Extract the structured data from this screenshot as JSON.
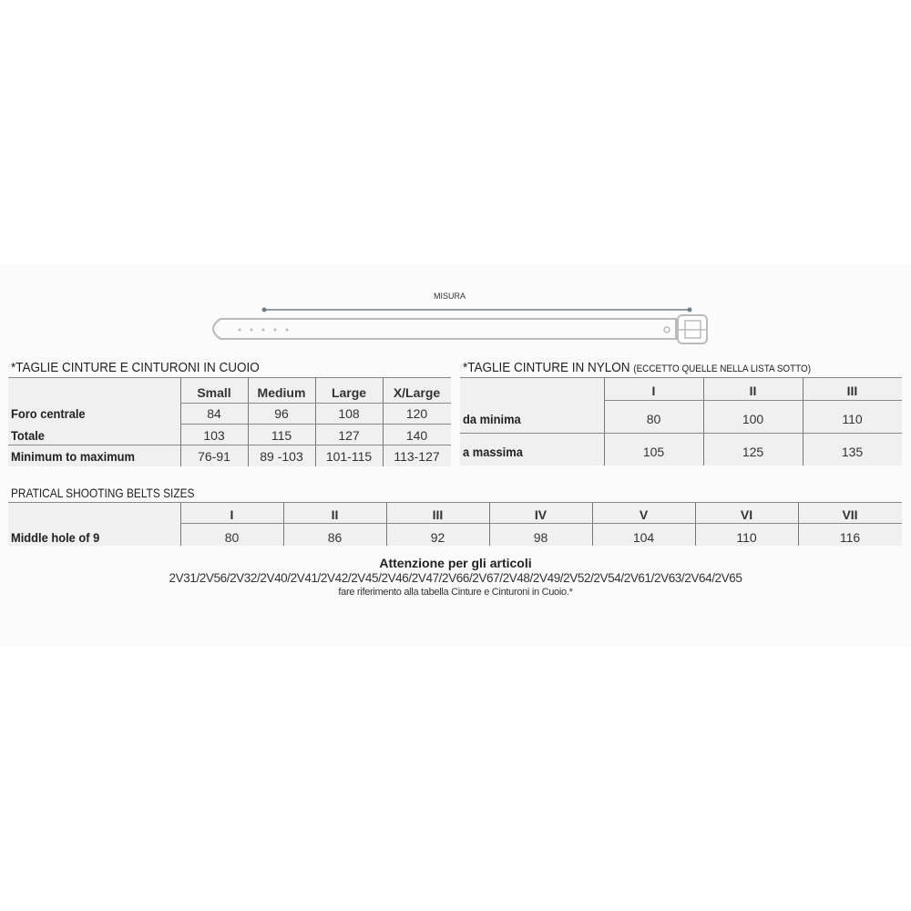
{
  "belt_diagram": {
    "measure_label": "MISURA"
  },
  "leather": {
    "title": "*TAGLIE CINTURE E CINTURONI IN CUOIO",
    "columns": [
      "Small",
      "Medium",
      "Large",
      "X/Large"
    ],
    "rows": [
      {
        "label": "Foro centrale",
        "values": [
          "84",
          "96",
          "108",
          "120"
        ]
      },
      {
        "label": "Totale",
        "values": [
          "103",
          "115",
          "127",
          "140"
        ]
      },
      {
        "label": "Minimum to maximum",
        "values": [
          "76-91",
          "89 -103",
          "101-115",
          "113-127"
        ]
      }
    ]
  },
  "nylon": {
    "title": "*TAGLIE CINTURE IN NYLON",
    "subtitle": "(ECCETTO QUELLE NELLA LISTA SOTTO)",
    "columns": [
      "I",
      "II",
      "III"
    ],
    "rows": [
      {
        "label": "da minima",
        "values": [
          "80",
          "100",
          "110"
        ]
      },
      {
        "label": "a massima",
        "values": [
          "105",
          "125",
          "135"
        ]
      }
    ]
  },
  "shooting": {
    "title": "PRATICAL SHOOTING BELTS SIZES",
    "columns": [
      "I",
      "II",
      "III",
      "IV",
      "V",
      "VI",
      "VII"
    ],
    "rows": [
      {
        "label": "Middle hole of 9",
        "values": [
          "80",
          "86",
          "92",
          "98",
          "104",
          "110",
          "116"
        ]
      }
    ]
  },
  "note": {
    "heading": "Attenzione per gli articoli",
    "articles": "2V31/2V56/2V32/2V40/2V41/2V42/2V45/2V46/2V47/2V66/2V67/2V48/2V49/2V52/2V54/2V61/2V63/2V64/2V65",
    "text": "fare riferimento alla tabella Cinture e Cinturoni in Cuoio.*"
  }
}
